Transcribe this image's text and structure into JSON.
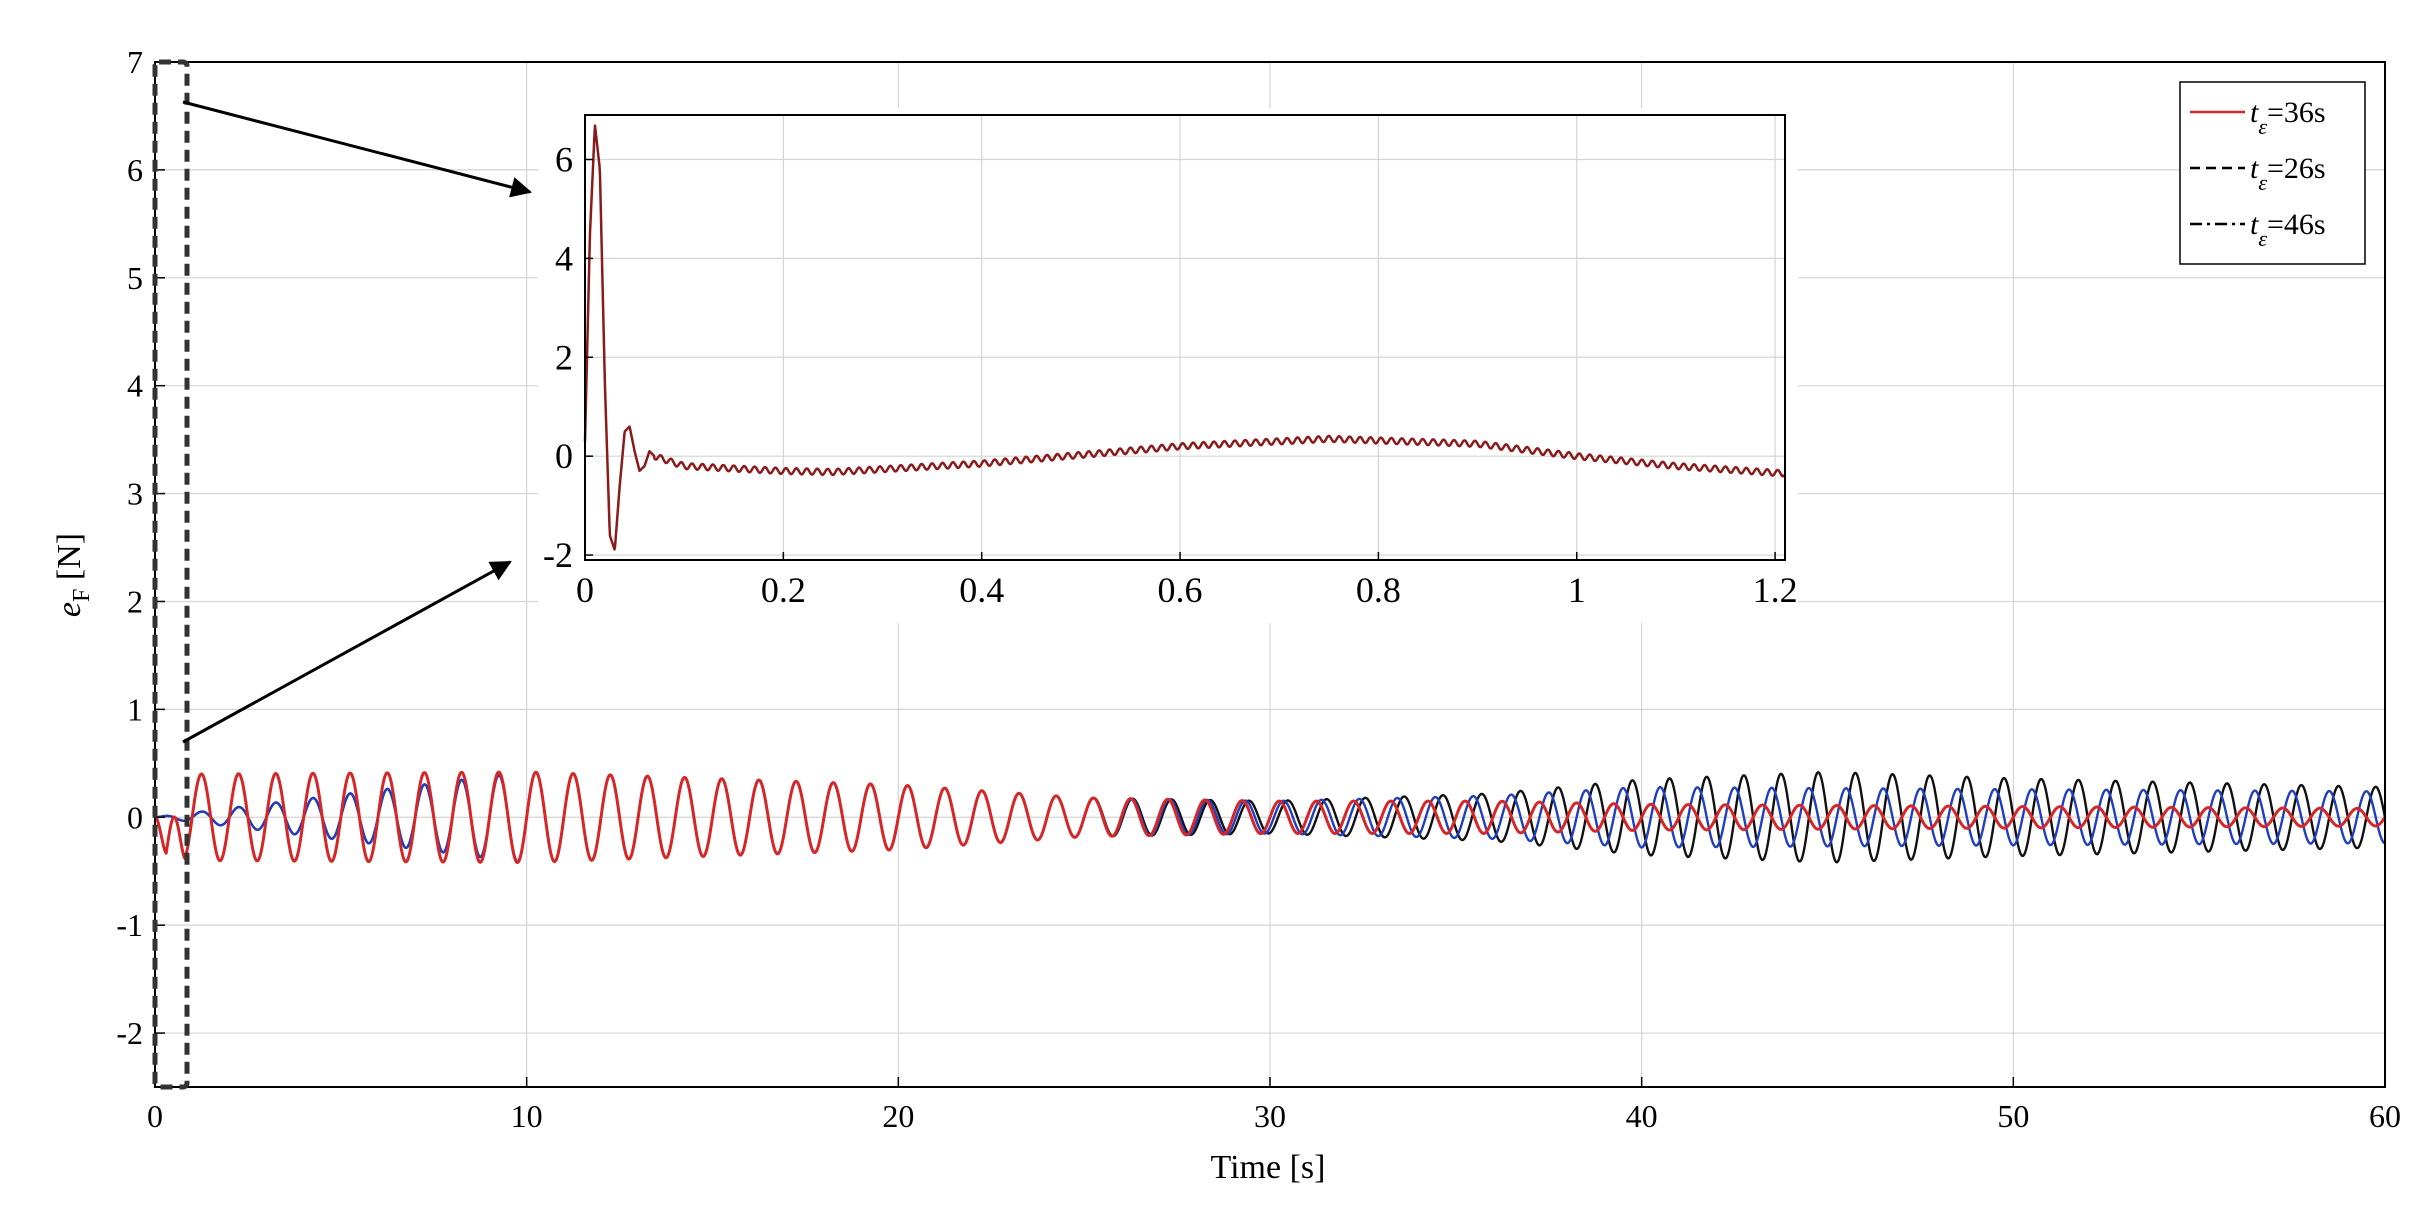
{
  "chart_data": [
    {
      "type": "line",
      "panel": "main",
      "title": "",
      "xlabel": "Time [s]",
      "ylabel": {
        "symbol": "e",
        "subscript": "F",
        "unit": "[N]"
      },
      "xlim": [
        0,
        60
      ],
      "ylim": [
        -2.5,
        7
      ],
      "xticks": [
        0,
        10,
        20,
        30,
        40,
        50,
        60
      ],
      "yticks": [
        -2,
        -1,
        0,
        1,
        2,
        3,
        4,
        5,
        6,
        7
      ],
      "grid": true,
      "legend": {
        "placement": "top-right",
        "entries": [
          {
            "symbol": "t",
            "subscript": "ε",
            "text": "=36s",
            "style": "solid",
            "color": "#d62728"
          },
          {
            "symbol": "t",
            "subscript": "ε",
            "text": "=26s",
            "style": "dashed",
            "color": "#000000"
          },
          {
            "symbol": "t",
            "subscript": "ε",
            "text": "=46s",
            "style": "dashdot",
            "color": "#000000"
          }
        ]
      },
      "series": [
        {
          "color": "#d62728",
          "style": "solid",
          "period_s": 1.0,
          "points": [
            [
              0,
              0
            ],
            [
              0.3,
              -0.35
            ],
            [
              0.8,
              0.4
            ],
            [
              10,
              0.42
            ],
            [
              20,
              0.3
            ],
            [
              25,
              0.18
            ],
            [
              30,
              0.15
            ],
            [
              36,
              0.15
            ],
            [
              40,
              0.12
            ],
            [
              50,
              0.1
            ],
            [
              60,
              0.08
            ]
          ]
        },
        {
          "color": "#1f3fbf",
          "style": "dashed",
          "period_s": 1.0,
          "points": [
            [
              0,
              0
            ],
            [
              10,
              0.42
            ],
            [
              20,
              0.3
            ],
            [
              25,
              0.18
            ],
            [
              30,
              0.15
            ],
            [
              36,
              0.2
            ],
            [
              40,
              0.28
            ],
            [
              50,
              0.26
            ],
            [
              60,
              0.24
            ]
          ]
        },
        {
          "color": "#111111",
          "style": "dashdot",
          "period_s": 1.0,
          "points": [
            [
              0,
              0
            ],
            [
              10,
              0.42
            ],
            [
              20,
              0.3
            ],
            [
              25,
              0.18
            ],
            [
              30,
              0.15
            ],
            [
              36,
              0.22
            ],
            [
              40,
              0.35
            ],
            [
              45,
              0.42
            ],
            [
              50,
              0.36
            ],
            [
              60,
              0.28
            ]
          ]
        }
      ],
      "annotation": "dashed box around t ≈ 0–0.8 s, magnified in inset"
    },
    {
      "type": "line",
      "panel": "inset",
      "title": "",
      "xlim": [
        0,
        1.21
      ],
      "ylim": [
        -2.1,
        6.9
      ],
      "xticks": [
        0,
        0.2,
        0.4,
        0.6,
        0.8,
        1,
        1.2
      ],
      "xtick_labels": [
        "0",
        "0.2",
        "0.4",
        "0.6",
        "0.8",
        "1",
        "1.2"
      ],
      "yticks": [
        -2,
        0,
        2,
        4,
        6
      ],
      "grid": true,
      "series": [
        {
          "color": "#8b1a1a",
          "style": "solid",
          "points": [
            [
              0,
              0.3
            ],
            [
              0.005,
              4.5
            ],
            [
              0.01,
              6.7
            ],
            [
              0.015,
              5.8
            ],
            [
              0.02,
              1.5
            ],
            [
              0.025,
              -1.6
            ],
            [
              0.03,
              -1.9
            ],
            [
              0.035,
              -0.6
            ],
            [
              0.04,
              0.5
            ],
            [
              0.045,
              0.6
            ],
            [
              0.05,
              0.1
            ],
            [
              0.055,
              -0.3
            ],
            [
              0.06,
              -0.2
            ],
            [
              0.065,
              0.1
            ],
            [
              0.07,
              0
            ],
            [
              0.1,
              -0.2
            ],
            [
              0.2,
              -0.3
            ],
            [
              0.25,
              -0.32
            ],
            [
              0.4,
              -0.15
            ],
            [
              0.6,
              0.2
            ],
            [
              0.75,
              0.35
            ],
            [
              0.9,
              0.25
            ],
            [
              1.0,
              0
            ],
            [
              1.1,
              -0.2
            ],
            [
              1.21,
              -0.35
            ]
          ]
        }
      ]
    }
  ]
}
